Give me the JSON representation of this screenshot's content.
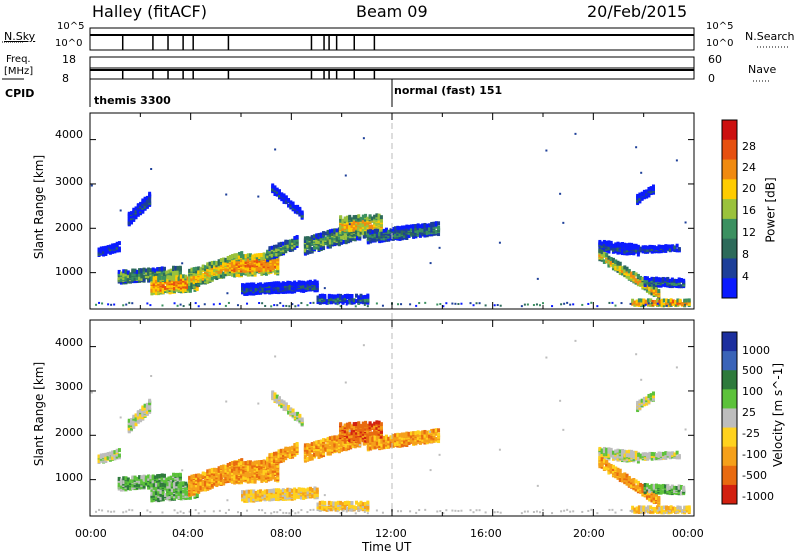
{
  "header": {
    "radar": "Halley (fitACF)",
    "beam": "Beam 09",
    "date": "20/Feb/2015"
  },
  "strip1": {
    "left_label": "N.Sky",
    "left_top": "10^5",
    "left_bottom": "10^0",
    "right_label": "N.Search",
    "right_top": "10^5",
    "right_bottom": "10^0"
  },
  "strip2": {
    "left_label_1": "Freq.",
    "left_label_2": "[MHz]",
    "left_top": "18",
    "left_bottom": "8",
    "right_label": "Nave",
    "right_top": "60",
    "right_bottom": "0"
  },
  "cpid": {
    "label": "CPID",
    "mode_1": "themis 3300",
    "mode_2": "normal (fast) 151"
  },
  "chart_data": [
    {
      "type": "heatmap",
      "title": "",
      "xlabel": "",
      "ylabel": "Slant Range [km]",
      "xlim": [
        0,
        24
      ],
      "ylim": [
        180,
        4600
      ],
      "yticks": [
        "1000",
        "2000",
        "3000",
        "4000"
      ],
      "colorbar": {
        "label": "Power [dB]",
        "ticks": [
          "4",
          "8",
          "12",
          "16",
          "20",
          "24",
          "28"
        ],
        "colors": [
          "#0a1aff",
          "#1d3f99",
          "#2d6a5a",
          "#3b9060",
          "#9ac23c",
          "#ffcc00",
          "#f08a10",
          "#e65010",
          "#cc1010"
        ]
      }
    },
    {
      "type": "heatmap",
      "title": "",
      "xlabel": "Time UT",
      "ylabel": "Slant Range [km]",
      "xlim": [
        0,
        24
      ],
      "ylim": [
        180,
        4600
      ],
      "xticks": [
        "00:00",
        "04:00",
        "08:00",
        "12:00",
        "16:00",
        "20:00",
        "00:00"
      ],
      "yticks": [
        "1000",
        "2000",
        "3000",
        "4000"
      ],
      "colorbar": {
        "label": "Velocity [m s^-1]",
        "ticks": [
          "1000",
          "500",
          "100",
          "25",
          "-25",
          "-100",
          "-500",
          "-1000"
        ],
        "colors": [
          "#1c2f9e",
          "#3a64b8",
          "#2e7a3c",
          "#5cc23a",
          "#bdbdbd",
          "#ffd21e",
          "#f5a01a",
          "#e86a10",
          "#d22010"
        ]
      }
    }
  ],
  "colors": {
    "axis": "#000000",
    "noon_line": "#bbbbbb"
  }
}
